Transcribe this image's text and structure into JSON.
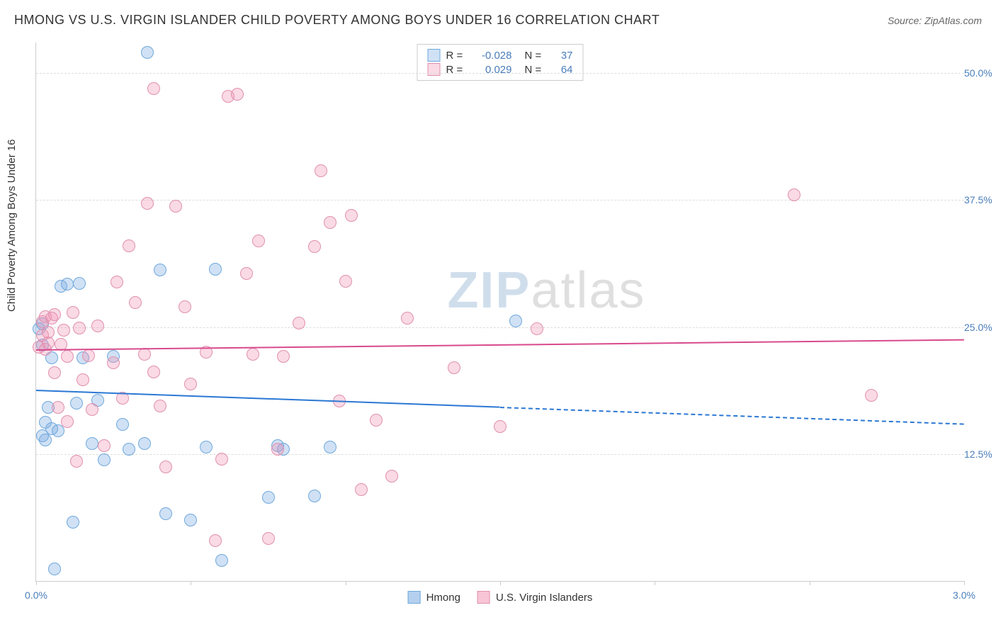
{
  "title": "HMONG VS U.S. VIRGIN ISLANDER CHILD POVERTY AMONG BOYS UNDER 16 CORRELATION CHART",
  "source_label": "Source:",
  "source_value": "ZipAtlas.com",
  "ylabel": "Child Poverty Among Boys Under 16",
  "watermark": {
    "part1": "ZIP",
    "part2": "atlas"
  },
  "chart": {
    "type": "scatter",
    "xlim": [
      0.0,
      3.0
    ],
    "ylim": [
      0.0,
      53.0
    ],
    "xtick_positions": [
      0.0,
      0.5,
      1.0,
      1.5,
      2.0,
      2.5,
      3.0
    ],
    "xtick_labels": {
      "0": "0.0%",
      "6": "3.0%"
    },
    "ytick_positions": [
      12.5,
      25.0,
      37.5,
      50.0
    ],
    "ytick_labels": [
      "12.5%",
      "25.0%",
      "37.5%",
      "50.0%"
    ],
    "grid_color": "#dddddd",
    "axis_color": "#cccccc",
    "background_color": "#ffffff",
    "marker_radius": 9,
    "marker_border_width": 1.5,
    "series": [
      {
        "name": "Hmong",
        "fill_color": "rgba(120,170,225,0.35)",
        "stroke_color": "#6fa8dc",
        "r_label": "R =",
        "r_value": "-0.028",
        "n_label": "N =",
        "n_value": "37",
        "trendline": {
          "y_at_x0": 18.8,
          "y_at_x3": 15.5,
          "solid_until_x": 1.5,
          "color": "#2b78d4",
          "width": 2
        },
        "points": [
          [
            0.01,
            24.8
          ],
          [
            0.02,
            23.2
          ],
          [
            0.02,
            25.3
          ],
          [
            0.02,
            14.3
          ],
          [
            0.03,
            15.6
          ],
          [
            0.03,
            13.9
          ],
          [
            0.04,
            17.1
          ],
          [
            0.05,
            22.0
          ],
          [
            0.05,
            15.0
          ],
          [
            0.06,
            1.2
          ],
          [
            0.07,
            14.8
          ],
          [
            0.08,
            29.0
          ],
          [
            0.1,
            29.2
          ],
          [
            0.12,
            5.8
          ],
          [
            0.13,
            17.5
          ],
          [
            0.14,
            29.3
          ],
          [
            0.15,
            22.0
          ],
          [
            0.18,
            13.5
          ],
          [
            0.2,
            17.8
          ],
          [
            0.22,
            11.9
          ],
          [
            0.25,
            22.1
          ],
          [
            0.28,
            15.4
          ],
          [
            0.3,
            13.0
          ],
          [
            0.35,
            13.5
          ],
          [
            0.36,
            52.0
          ],
          [
            0.4,
            30.6
          ],
          [
            0.42,
            6.6
          ],
          [
            0.5,
            6.0
          ],
          [
            0.55,
            13.2
          ],
          [
            0.58,
            30.7
          ],
          [
            0.6,
            2.0
          ],
          [
            0.75,
            8.2
          ],
          [
            0.78,
            13.3
          ],
          [
            0.8,
            13.0
          ],
          [
            0.9,
            8.4
          ],
          [
            0.95,
            13.2
          ],
          [
            1.55,
            25.6
          ]
        ]
      },
      {
        "name": "U.S. Virgin Islanders",
        "fill_color": "rgba(240,150,180,0.35)",
        "stroke_color": "#e08fae",
        "r_label": "R =",
        "r_value": "0.029",
        "n_label": "N =",
        "n_value": "64",
        "trendline": {
          "y_at_x0": 22.8,
          "y_at_x3": 23.8,
          "solid_until_x": 3.0,
          "color": "#d84a8c",
          "width": 2
        },
        "points": [
          [
            0.01,
            23.0
          ],
          [
            0.02,
            24.2
          ],
          [
            0.02,
            25.5
          ],
          [
            0.03,
            22.8
          ],
          [
            0.03,
            26.0
          ],
          [
            0.04,
            23.4
          ],
          [
            0.04,
            24.5
          ],
          [
            0.05,
            25.9
          ],
          [
            0.06,
            20.5
          ],
          [
            0.06,
            26.2
          ],
          [
            0.07,
            17.1
          ],
          [
            0.08,
            23.3
          ],
          [
            0.09,
            24.7
          ],
          [
            0.1,
            22.1
          ],
          [
            0.1,
            15.7
          ],
          [
            0.12,
            26.4
          ],
          [
            0.13,
            11.8
          ],
          [
            0.14,
            24.9
          ],
          [
            0.15,
            19.8
          ],
          [
            0.17,
            22.2
          ],
          [
            0.18,
            16.9
          ],
          [
            0.2,
            25.1
          ],
          [
            0.22,
            13.3
          ],
          [
            0.25,
            21.5
          ],
          [
            0.26,
            29.4
          ],
          [
            0.28,
            18.0
          ],
          [
            0.3,
            33.0
          ],
          [
            0.32,
            27.4
          ],
          [
            0.35,
            22.3
          ],
          [
            0.36,
            37.2
          ],
          [
            0.38,
            48.5
          ],
          [
            0.38,
            20.6
          ],
          [
            0.4,
            17.2
          ],
          [
            0.42,
            11.2
          ],
          [
            0.45,
            36.9
          ],
          [
            0.48,
            27.0
          ],
          [
            0.5,
            19.4
          ],
          [
            0.55,
            22.5
          ],
          [
            0.58,
            4.0
          ],
          [
            0.6,
            12.0
          ],
          [
            0.62,
            47.7
          ],
          [
            0.65,
            47.9
          ],
          [
            0.68,
            30.3
          ],
          [
            0.7,
            22.3
          ],
          [
            0.72,
            33.5
          ],
          [
            0.75,
            4.2
          ],
          [
            0.78,
            13.0
          ],
          [
            0.8,
            22.1
          ],
          [
            0.85,
            25.4
          ],
          [
            0.9,
            32.9
          ],
          [
            0.92,
            40.4
          ],
          [
            0.95,
            35.3
          ],
          [
            0.98,
            17.7
          ],
          [
            1.0,
            29.5
          ],
          [
            1.02,
            36.0
          ],
          [
            1.05,
            9.0
          ],
          [
            1.1,
            15.8
          ],
          [
            1.15,
            10.3
          ],
          [
            1.2,
            25.9
          ],
          [
            1.35,
            21.0
          ],
          [
            1.5,
            15.2
          ],
          [
            1.62,
            24.8
          ],
          [
            2.45,
            38.0
          ],
          [
            2.7,
            18.3
          ]
        ]
      }
    ]
  },
  "legend_bottom": [
    {
      "label": "Hmong",
      "fill": "rgba(120,170,225,0.55)",
      "stroke": "#6fa8dc"
    },
    {
      "label": "U.S. Virgin Islanders",
      "fill": "rgba(240,150,180,0.55)",
      "stroke": "#e08fae"
    }
  ]
}
